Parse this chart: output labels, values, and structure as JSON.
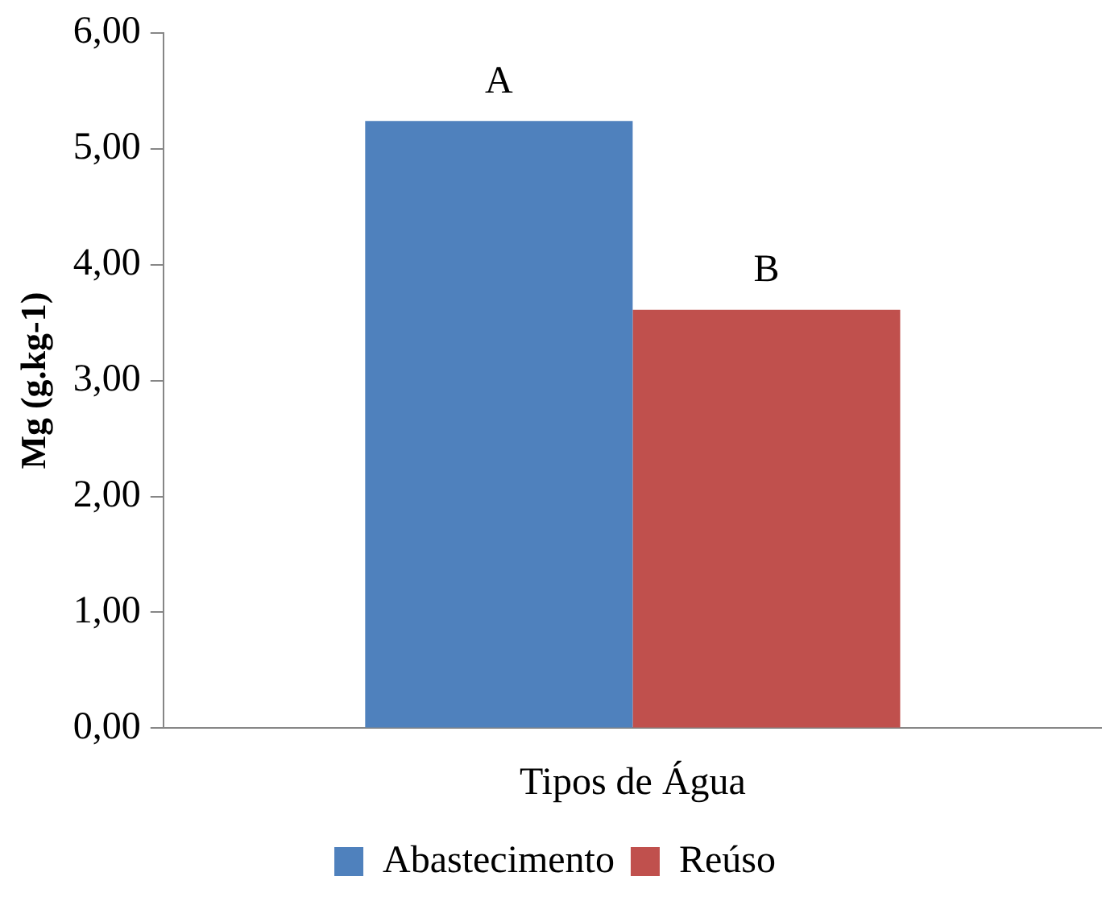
{
  "chart_data": {
    "type": "bar",
    "ylabel": "Mg (g.kg-1)",
    "categories": [
      "Tipos de Água"
    ],
    "series": [
      {
        "name": "Abastecimento",
        "color": "#4f81bd",
        "values": [
          5.24
        ]
      },
      {
        "name": "Reúso",
        "color": "#c0504d",
        "values": [
          3.61
        ]
      }
    ],
    "ylim": [
      0,
      6
    ],
    "yticks": [
      {
        "value": 0,
        "label": "0,00"
      },
      {
        "value": 1,
        "label": "1,00"
      },
      {
        "value": 2,
        "label": "2,00"
      },
      {
        "value": 3,
        "label": "3,00"
      },
      {
        "value": 4,
        "label": "4,00"
      },
      {
        "value": 5,
        "label": "5,00"
      },
      {
        "value": 6,
        "label": "6,00"
      }
    ],
    "annotations": [
      "A",
      "B"
    ],
    "grid": false,
    "legend": "bottom"
  }
}
